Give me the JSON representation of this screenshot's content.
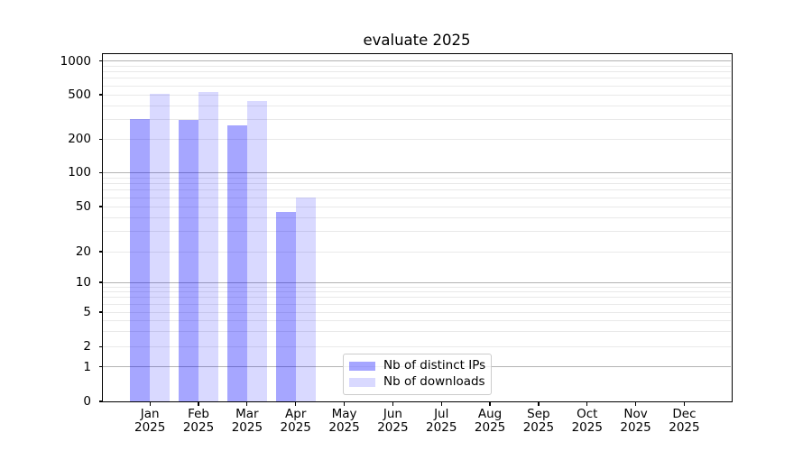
{
  "chart_data": {
    "type": "bar",
    "title": "evaluate 2025",
    "xlabel": "",
    "ylabel": "",
    "yscale": "symlog",
    "ylim": [
      0,
      1000
    ],
    "yticks": [
      0,
      1,
      2,
      5,
      10,
      20,
      50,
      100,
      200,
      500,
      1000
    ],
    "categories": [
      "Jan 2025",
      "Feb 2025",
      "Mar 2025",
      "Apr 2025",
      "May 2025",
      "Jun 2025",
      "Jul 2025",
      "Aug 2025",
      "Sep 2025",
      "Oct 2025",
      "Nov 2025",
      "Dec 2025"
    ],
    "series": [
      {
        "name": "Nb of distinct IPs",
        "color": "rgba(0,0,255,0.35)",
        "color_on_white": "#a6a6ff",
        "values": [
          300,
          295,
          265,
          45,
          null,
          null,
          null,
          null,
          null,
          null,
          null,
          null
        ]
      },
      {
        "name": "Nb of downloads",
        "color": "rgba(0,0,255,0.15)",
        "color_on_white": "#d9d9ff",
        "values": [
          505,
          530,
          440,
          60,
          null,
          null,
          null,
          null,
          null,
          null,
          null,
          null
        ]
      }
    ],
    "grid": {
      "major_values": [
        1,
        10,
        100,
        1000
      ],
      "minor_values": [
        2,
        3,
        4,
        5,
        6,
        7,
        8,
        9,
        20,
        30,
        40,
        50,
        60,
        70,
        80,
        90,
        200,
        300,
        400,
        500,
        600,
        700,
        800,
        900
      ],
      "major_color": "#b3b3b3",
      "minor_color": "#e9e9e9"
    },
    "legend": {
      "position": "bottom-center",
      "entries": [
        "Nb of distinct IPs",
        "Nb of downloads"
      ]
    }
  }
}
